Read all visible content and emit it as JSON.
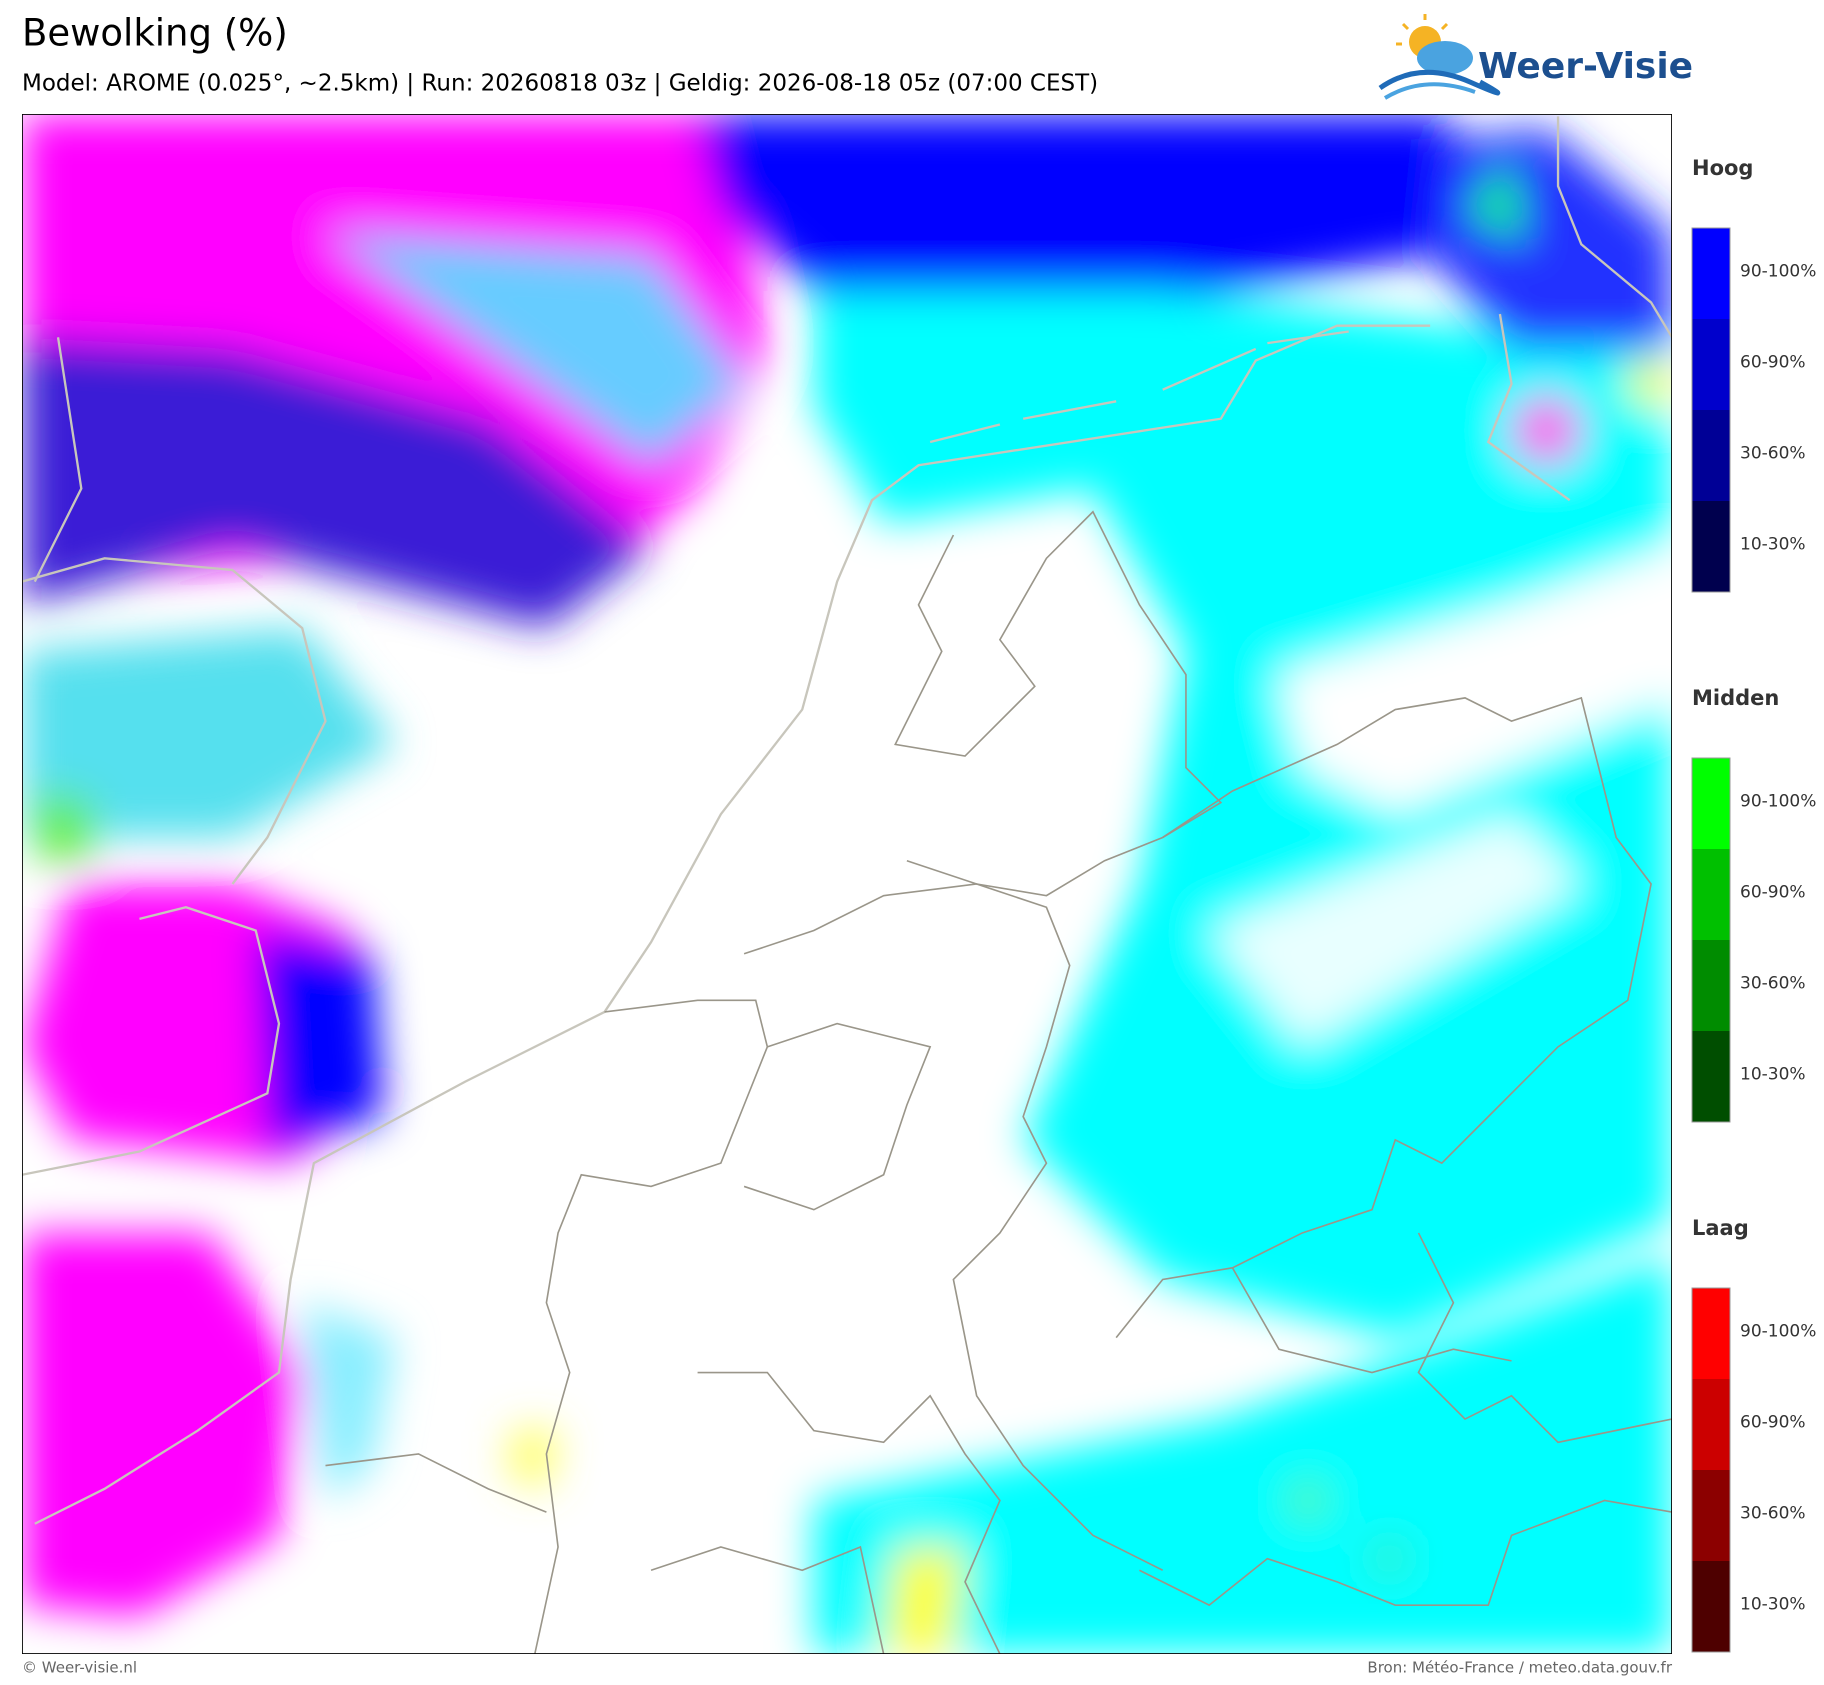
{
  "header": {
    "title": "Bewolking (%)",
    "subtitle": "Model: AROME (0.025°, ~2.5km)  |  Run: 20260818 03z  |  Geldig: 2026-08-18 05z (07:00 CEST)"
  },
  "logo": {
    "text": "Weer-Visie"
  },
  "legend": {
    "groups": [
      {
        "title": "Hoog",
        "labels": [
          "90-100%",
          "60-90%",
          "30-60%",
          "10-30%"
        ],
        "colors": [
          "#0000ff",
          "#0000cc",
          "#000096",
          "#00004e"
        ]
      },
      {
        "title": "Midden",
        "labels": [
          "90-100%",
          "60-90%",
          "30-60%",
          "10-30%"
        ],
        "colors": [
          "#00ff00",
          "#00c000",
          "#008c00",
          "#004e00"
        ]
      },
      {
        "title": "Laag",
        "labels": [
          "90-100%",
          "60-90%",
          "30-60%",
          "10-30%"
        ],
        "colors": [
          "#ff0000",
          "#cc0000",
          "#8c0000",
          "#4e0000"
        ]
      }
    ]
  },
  "footer": {
    "left": "© Weer-visie.nl",
    "right": "Bron: Météo-France / meteo.data.gouv.fr"
  }
}
